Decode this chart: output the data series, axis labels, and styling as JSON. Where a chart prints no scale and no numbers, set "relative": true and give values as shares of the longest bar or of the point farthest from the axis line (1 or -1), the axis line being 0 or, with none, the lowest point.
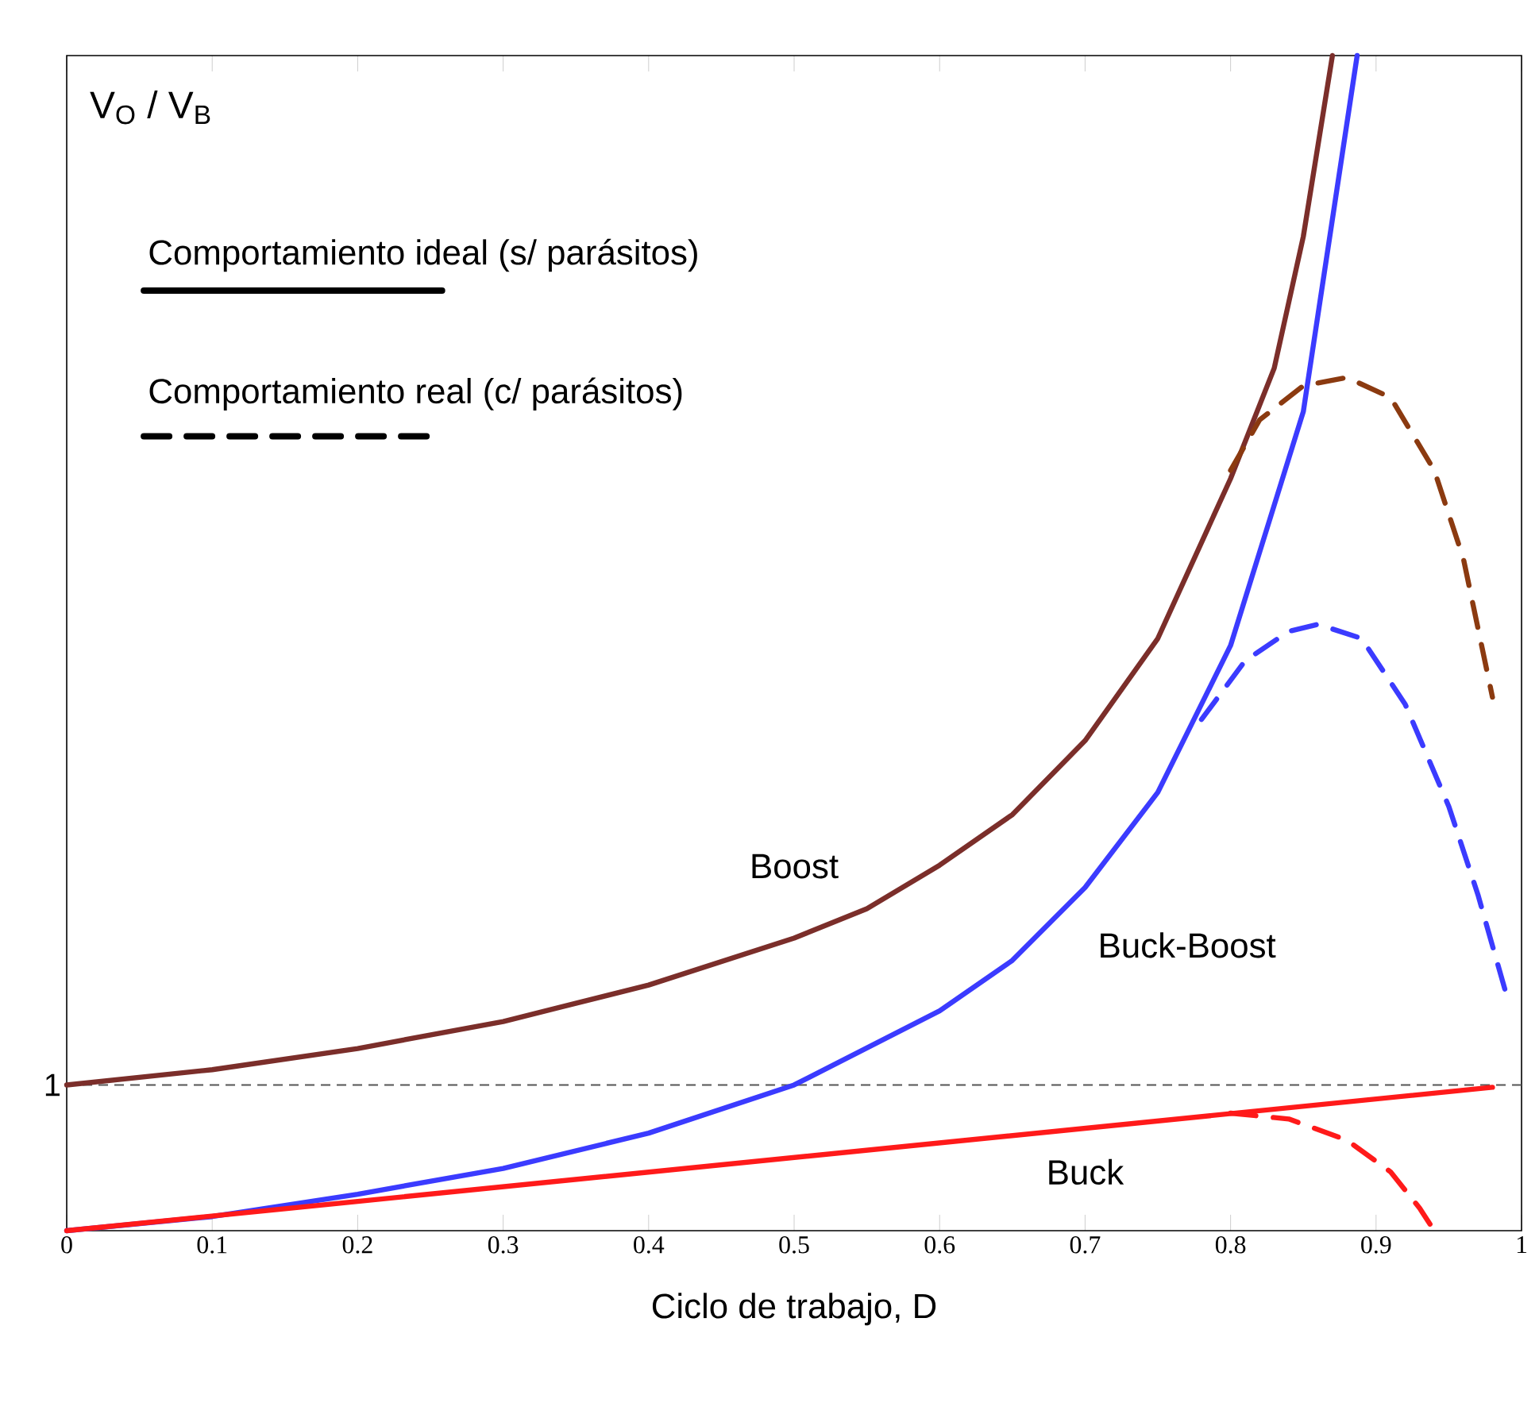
{
  "chart_data": {
    "type": "line",
    "relative": true,
    "ylabel": "V$_{O}$ / V$_{B}$",
    "xlabel": "Ciclo de trabajo, D",
    "xlim": [
      0,
      1
    ],
    "xticks": [
      0,
      0.1,
      0.2,
      0.3,
      0.4,
      0.5,
      0.6,
      0.7,
      0.8,
      0.9,
      1
    ],
    "annotations": [
      "Comportamiento ideal (s/ parásitos)",
      "Comportamiento real (c/ parásitos)",
      "1"
    ],
    "ref_lines": [
      {
        "axis": "y",
        "value": 0.124,
        "color": "#555555",
        "line_style": "dashed"
      }
    ],
    "series": [
      {
        "name": "Boost",
        "color": "#7b2e2a",
        "line_style": "solid",
        "x": [
          0,
          0.1,
          0.2,
          0.3,
          0.4,
          0.5,
          0.55,
          0.6,
          0.65,
          0.7,
          0.75,
          0.8,
          0.83,
          0.85,
          0.87
        ],
        "values": [
          0.124,
          0.137,
          0.155,
          0.178,
          0.209,
          0.249,
          0.274,
          0.311,
          0.354,
          0.417,
          0.504,
          0.64,
          0.734,
          0.846,
          1
        ]
      },
      {
        "color": "#8b3a10",
        "line_style": "dashed",
        "x": [
          0.8,
          0.82,
          0.85,
          0.88,
          0.91,
          0.94,
          0.96,
          0.98
        ],
        "values": [
          0.647,
          0.69,
          0.719,
          0.726,
          0.709,
          0.647,
          0.572,
          0.454
        ]
      },
      {
        "name": "Buck-Boost",
        "color": "#3b3bff",
        "line_style": "solid",
        "x": [
          0,
          0.1,
          0.2,
          0.3,
          0.4,
          0.5,
          0.6,
          0.65,
          0.7,
          0.75,
          0.8,
          0.85,
          0.887
        ],
        "values": [
          0,
          0.012,
          0.031,
          0.053,
          0.083,
          0.124,
          0.187,
          0.23,
          0.292,
          0.373,
          0.498,
          0.697,
          1
        ]
      },
      {
        "color": "#3b3bff",
        "line_style": "dashed",
        "x": [
          0.78,
          0.81,
          0.84,
          0.86,
          0.89,
          0.92,
          0.95,
          0.97,
          0.99
        ],
        "values": [
          0.435,
          0.485,
          0.51,
          0.516,
          0.504,
          0.448,
          0.361,
          0.286,
          0.199
        ]
      },
      {
        "name": "Buck",
        "color": "#ff1a1a",
        "line_style": "solid",
        "x": [
          0,
          0.98
        ],
        "values": [
          0,
          0.122
        ]
      },
      {
        "color": "#ff1a1a",
        "line_style": "dashed",
        "x": [
          0.8,
          0.84,
          0.88,
          0.91,
          0.93,
          0.94
        ],
        "values": [
          0.1,
          0.095,
          0.077,
          0.05,
          0.019,
          0
        ]
      }
    ]
  }
}
